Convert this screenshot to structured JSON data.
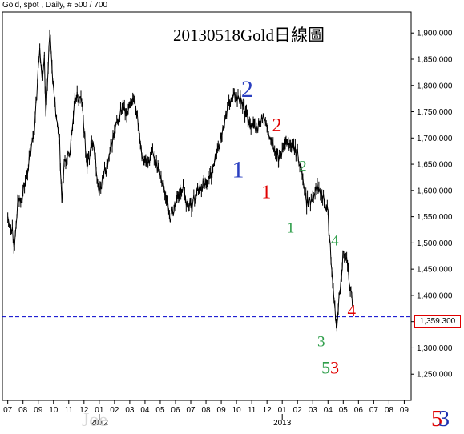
{
  "header": {
    "instrument": "Gold, spot , Daily, # 500 / 700"
  },
  "chart_title": "20130518Gold日線圖",
  "last_price_label": "1,359.300",
  "watermark": "Joe",
  "badge": {
    "digit_a": "5",
    "digit_b": "3",
    "color_a": "#e00000",
    "color_b": "#1c2fb0"
  },
  "colors": {
    "price": "#000000",
    "axis": "#000000",
    "dashed_line": "#0000cc",
    "blue": "#2a3fc0",
    "red": "#e00000",
    "green": "#2e9e4a"
  },
  "chart_data": {
    "type": "line",
    "subtype": "ohlc-bars",
    "title": "20130518Gold日線圖",
    "y_axis_side": "right",
    "ylim": [
      1200,
      1940
    ],
    "yticks": [
      1250,
      1300,
      1350,
      1400,
      1450,
      1500,
      1550,
      1600,
      1650,
      1700,
      1750,
      1800,
      1850,
      1900
    ],
    "ytick_labels": [
      "1,250.000",
      "1,300.000",
      "1,350.000",
      "1,400.000",
      "1,450.000",
      "1,500.000",
      "1,550.000",
      "1,600.000",
      "1,650.000",
      "1,700.000",
      "1,750.000",
      "1,800.000",
      "1,850.000",
      "1,900.000"
    ],
    "x_months": [
      "07",
      "08",
      "09",
      "10",
      "11",
      "12",
      "01",
      "02",
      "03",
      "04",
      "05",
      "06",
      "07",
      "08",
      "09",
      "10",
      "11",
      "12",
      "01",
      "02",
      "03",
      "04",
      "05",
      "06",
      "07",
      "08",
      "09"
    ],
    "x_years": [
      {
        "label": "2012",
        "month_index": 6
      },
      {
        "label": "2013",
        "month_index": 18
      }
    ],
    "x_range_months": [
      -0.35,
      26.45
    ],
    "last_price": 1359.3,
    "series": [
      {
        "points": [
          [
            0.0,
            1545
          ],
          [
            0.3,
            1528
          ],
          [
            0.45,
            1488
          ],
          [
            0.65,
            1575
          ],
          [
            0.95,
            1590
          ],
          [
            1.2,
            1625
          ],
          [
            1.5,
            1670
          ],
          [
            1.8,
            1735
          ],
          [
            2.1,
            1880
          ],
          [
            2.25,
            1810
          ],
          [
            2.4,
            1860
          ],
          [
            2.5,
            1738
          ],
          [
            2.75,
            1905
          ],
          [
            3.05,
            1770
          ],
          [
            3.4,
            1685
          ],
          [
            3.55,
            1575
          ],
          [
            3.7,
            1650
          ],
          [
            4.05,
            1668
          ],
          [
            4.45,
            1780
          ],
          [
            4.85,
            1770
          ],
          [
            5.2,
            1645
          ],
          [
            5.4,
            1670
          ],
          [
            5.6,
            1700
          ],
          [
            6.0,
            1592
          ],
          [
            6.2,
            1620
          ],
          [
            6.6,
            1655
          ],
          [
            6.9,
            1700
          ],
          [
            7.3,
            1740
          ],
          [
            7.55,
            1760
          ],
          [
            7.75,
            1740
          ],
          [
            8.0,
            1770
          ],
          [
            8.2,
            1766
          ],
          [
            8.5,
            1745
          ],
          [
            8.8,
            1670
          ],
          [
            9.1,
            1650
          ],
          [
            9.5,
            1670
          ],
          [
            9.85,
            1645
          ],
          [
            10.15,
            1615
          ],
          [
            10.45,
            1578
          ],
          [
            10.65,
            1548
          ],
          [
            10.9,
            1565
          ],
          [
            11.15,
            1590
          ],
          [
            11.45,
            1605
          ],
          [
            11.8,
            1570
          ],
          [
            12.1,
            1575
          ],
          [
            12.45,
            1600
          ],
          [
            12.75,
            1610
          ],
          [
            13.1,
            1620
          ],
          [
            13.4,
            1635
          ],
          [
            13.7,
            1670
          ],
          [
            14.0,
            1700
          ],
          [
            14.3,
            1745
          ],
          [
            14.6,
            1768
          ],
          [
            14.85,
            1778
          ],
          [
            15.0,
            1783
          ],
          [
            15.3,
            1775
          ],
          [
            15.6,
            1745
          ],
          [
            15.9,
            1730
          ],
          [
            16.15,
            1724
          ],
          [
            16.3,
            1712
          ],
          [
            16.55,
            1735
          ],
          [
            16.85,
            1738
          ],
          [
            17.05,
            1710
          ],
          [
            17.3,
            1690
          ],
          [
            17.6,
            1668
          ],
          [
            17.85,
            1663
          ],
          [
            18.05,
            1675
          ],
          [
            18.35,
            1692
          ],
          [
            18.7,
            1680
          ],
          [
            19.0,
            1670
          ],
          [
            19.25,
            1640
          ],
          [
            19.45,
            1600
          ],
          [
            19.6,
            1578
          ],
          [
            19.85,
            1580
          ],
          [
            20.1,
            1600
          ],
          [
            20.35,
            1608
          ],
          [
            20.6,
            1600
          ],
          [
            20.8,
            1580
          ],
          [
            21.0,
            1555
          ],
          [
            21.15,
            1490
          ],
          [
            21.3,
            1420
          ],
          [
            21.45,
            1375
          ],
          [
            21.58,
            1330
          ],
          [
            21.72,
            1402
          ],
          [
            21.85,
            1430
          ],
          [
            21.98,
            1475
          ],
          [
            22.12,
            1470
          ],
          [
            22.28,
            1460
          ],
          [
            22.42,
            1425
          ],
          [
            22.55,
            1398
          ],
          [
            22.7,
            1362
          ]
        ]
      }
    ],
    "annotations": [
      {
        "text": "2",
        "month": 15.7,
        "price": 1778,
        "color": "#2a3fc0",
        "size": 30
      },
      {
        "text": "1",
        "month": 15.1,
        "price": 1625,
        "color": "#2a3fc0",
        "size": 30
      },
      {
        "text": "2",
        "month": 17.65,
        "price": 1713,
        "color": "#e00000",
        "size": 24
      },
      {
        "text": "1",
        "month": 16.95,
        "price": 1585,
        "color": "#e00000",
        "size": 24
      },
      {
        "text": "2",
        "month": 19.35,
        "price": 1637,
        "color": "#2e9e4a",
        "size": 19
      },
      {
        "text": "1",
        "month": 18.55,
        "price": 1520,
        "color": "#2e9e4a",
        "size": 19
      },
      {
        "text": "4",
        "month": 21.45,
        "price": 1495,
        "color": "#2e9e4a",
        "size": 19
      },
      {
        "text": "3",
        "month": 20.55,
        "price": 1303,
        "color": "#2e9e4a",
        "size": 19
      },
      {
        "text": "4",
        "month": 22.55,
        "price": 1360,
        "color": "#e00000",
        "size": 21
      }
    ],
    "combined_label": {
      "digit_a": "5",
      "color_a": "#2e9e4a",
      "digit_b": "3",
      "color_b": "#e00000",
      "month": 21.15,
      "price": 1251
    }
  }
}
